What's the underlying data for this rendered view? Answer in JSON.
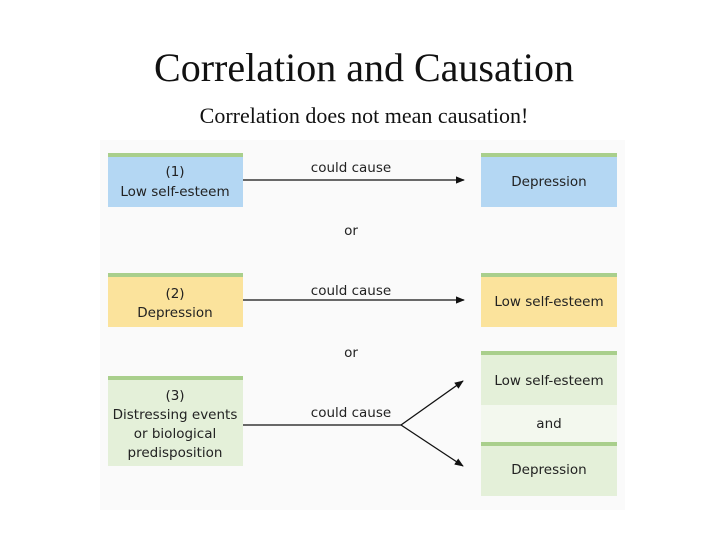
{
  "header": {
    "title": "Correlation and Causation",
    "subtitle": "Correlation does not mean causation!"
  },
  "rows": [
    {
      "cause": [
        "(1)",
        "Low self-esteem"
      ],
      "link": "could cause",
      "effects": [
        "Depression"
      ]
    },
    {
      "cause": [
        "(2)",
        "Depression"
      ],
      "link": "could cause",
      "effects": [
        "Low self-esteem"
      ]
    },
    {
      "cause": [
        "(3)",
        "Distressing events",
        "or biological",
        "predisposition"
      ],
      "link": "could cause",
      "effects": [
        "Low self-esteem",
        "Depression"
      ],
      "joiner": "and"
    }
  ],
  "separators": [
    "or",
    "or"
  ]
}
